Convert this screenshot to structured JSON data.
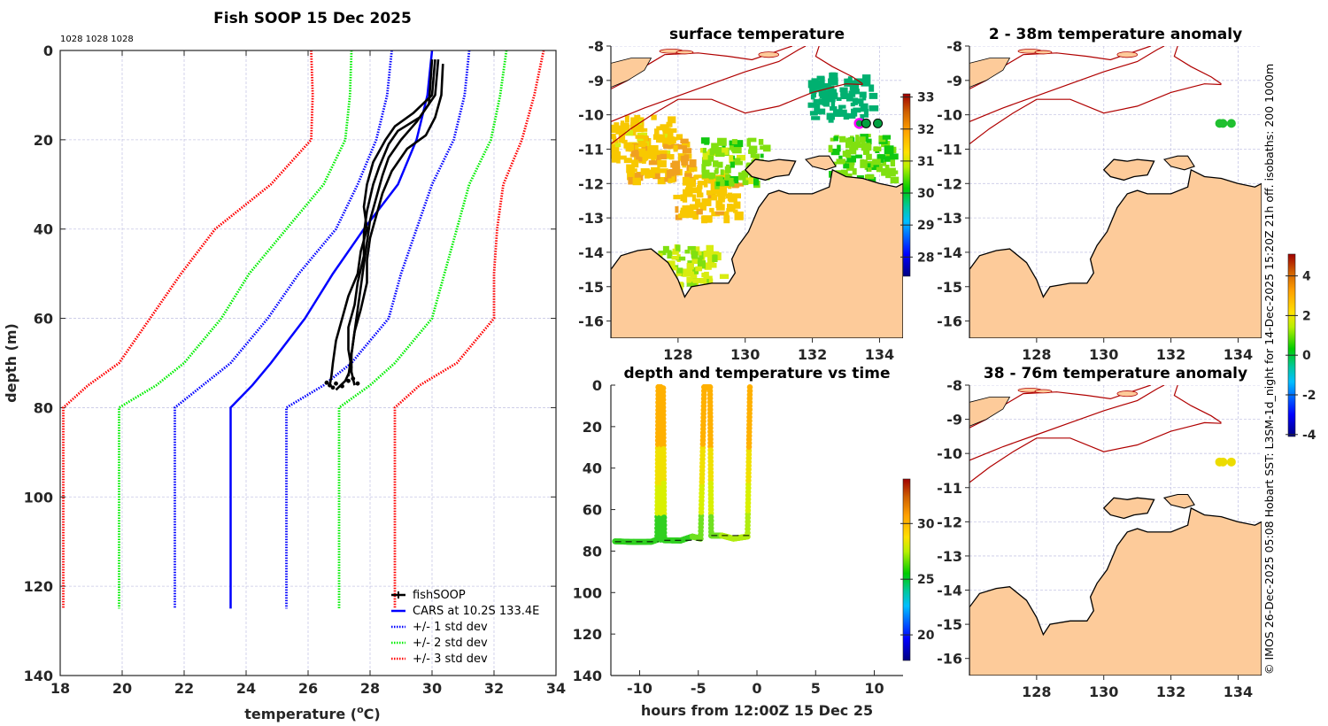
{
  "figure": {
    "credit": "© IMOS 26-Dec-2025 05:08 Hobart SST: L3SM-1d_night for 14-Dec-2025 15:20Z 21h off. isobaths: 200  1000m"
  },
  "colors": {
    "profile": "#000000",
    "cars": "#0000ff",
    "std1": "#0000ff",
    "std2": "#00ee00",
    "std3": "#ff0000",
    "land": "#fdcb9a",
    "isobath": "#b00000",
    "grid": "#c8c8e6"
  },
  "chart_data": [
    {
      "id": "profile",
      "type": "line",
      "title": "Fish SOOP 15 Dec 2025",
      "annotation": "1028 1028 1028",
      "xlabel": "temperature (°C)",
      "xlabel_main": "temperature (",
      "xlabel_sup": "o",
      "xlabel_end": "C)",
      "ylabel": "depth (m)",
      "xlim": [
        18,
        34
      ],
      "ylim": [
        0,
        140
      ],
      "y_reversed": true,
      "xticks": [
        18,
        20,
        22,
        24,
        26,
        28,
        30,
        32,
        34
      ],
      "yticks": [
        0,
        20,
        40,
        60,
        80,
        100,
        120,
        140
      ],
      "grid": true,
      "legend_position": "bottom-right",
      "legend": [
        {
          "label": "fishSOOP",
          "style": "solid-marker",
          "color": "#000000"
        },
        {
          "label": "CARS at 10.2S 133.4E",
          "style": "solid",
          "color": "#0000ff"
        },
        {
          "label": "+/- 1 std dev",
          "style": "dotted",
          "color": "#0000ff"
        },
        {
          "label": "+/- 2 std dev",
          "style": "dotted",
          "color": "#00ee00"
        },
        {
          "label": "+/- 3 std dev",
          "style": "dotted",
          "color": "#ff0000"
        }
      ],
      "depths": [
        0,
        10,
        20,
        30,
        40,
        50,
        60,
        70,
        75,
        80,
        125
      ],
      "series": [
        {
          "name": "CARS at 10.2S 133.4E",
          "style": "solid",
          "color": "#0000ff",
          "temps": [
            30.0,
            29.85,
            29.5,
            28.9,
            27.8,
            26.8,
            25.9,
            24.8,
            24.2,
            23.5,
            23.5
          ]
        },
        {
          "name": "+1 std dev",
          "style": "dotted",
          "color": "#0000ff",
          "temps": [
            31.2,
            31.05,
            30.7,
            30.0,
            29.5,
            29.0,
            28.6,
            27.4,
            26.5,
            25.3,
            25.3
          ]
        },
        {
          "name": "-1 std dev",
          "style": "dotted",
          "color": "#0000ff",
          "temps": [
            28.7,
            28.55,
            28.2,
            27.6,
            26.9,
            25.7,
            24.7,
            23.5,
            22.6,
            21.7,
            21.7
          ]
        },
        {
          "name": "+2 std dev",
          "style": "dotted",
          "color": "#00ee00",
          "temps": [
            32.4,
            32.2,
            31.9,
            31.2,
            30.8,
            30.4,
            30.0,
            28.8,
            28.0,
            27.0,
            27.0
          ]
        },
        {
          "name": "-2 std dev",
          "style": "dotted",
          "color": "#00ee00",
          "temps": [
            27.4,
            27.35,
            27.2,
            26.5,
            25.3,
            24.1,
            23.2,
            22.0,
            21.1,
            19.9,
            19.9
          ]
        },
        {
          "name": "+3 std dev",
          "style": "dotted",
          "color": "#ff0000",
          "temps": [
            33.6,
            33.3,
            32.9,
            32.3,
            32.1,
            32.0,
            32.0,
            30.8,
            29.6,
            28.8,
            28.8
          ]
        },
        {
          "name": "-3 std dev",
          "style": "dotted",
          "color": "#ff0000",
          "temps": [
            26.1,
            26.15,
            26.1,
            24.8,
            23.0,
            21.9,
            20.9,
            19.9,
            18.9,
            18.1,
            18.1
          ]
        }
      ],
      "fishSOOP_casts": [
        {
          "depths": [
            2,
            10,
            14,
            17,
            20,
            25,
            30,
            35,
            40,
            45,
            50,
            55,
            60,
            65,
            70,
            73,
            75
          ],
          "temps": [
            30.1,
            30.0,
            29.4,
            28.8,
            28.5,
            28.1,
            27.9,
            27.8,
            27.9,
            27.7,
            27.6,
            27.3,
            27.1,
            26.9,
            26.8,
            26.75,
            26.7
          ]
        },
        {
          "depths": [
            2,
            10,
            15,
            18,
            21,
            26,
            30,
            36,
            41,
            46,
            52,
            57,
            62,
            67,
            71,
            74,
            76
          ],
          "temps": [
            30.2,
            30.1,
            29.6,
            28.9,
            28.6,
            28.3,
            28.1,
            27.9,
            27.8,
            27.8,
            27.6,
            27.5,
            27.3,
            27.3,
            27.4,
            27.2,
            26.9
          ]
        },
        {
          "depths": [
            3,
            10,
            15,
            19,
            22,
            27,
            32,
            37,
            42,
            47,
            52,
            58,
            63,
            68,
            72,
            75
          ],
          "temps": [
            30.35,
            30.3,
            30.1,
            29.8,
            29.2,
            28.7,
            28.4,
            28.2,
            28.0,
            27.9,
            27.9,
            27.7,
            27.5,
            27.4,
            27.4,
            27.5
          ]
        },
        {
          "depths": [
            2,
            12,
            16,
            20,
            24,
            28,
            33,
            38,
            43,
            48,
            53,
            58,
            63,
            68,
            73
          ],
          "temps": [
            30.0,
            29.9,
            29.5,
            29.0,
            28.6,
            28.4,
            28.2,
            28.0,
            27.9,
            27.8,
            27.7,
            27.6,
            27.5,
            27.4,
            27.3
          ]
        }
      ]
    },
    {
      "id": "surface_temperature_map",
      "type": "heatmap",
      "title": "surface temperature",
      "xlim": [
        126.0,
        134.7
      ],
      "ylim": [
        -16.5,
        -8
      ],
      "xticks": [
        128,
        130,
        132,
        134
      ],
      "yticks": [
        -8,
        -9,
        -10,
        -11,
        -12,
        -13,
        -14,
        -15,
        -16
      ],
      "colorbar": {
        "ticks": [
          28,
          29,
          30,
          31,
          32,
          33
        ],
        "range": [
          27.4,
          33.1
        ]
      },
      "sst_patches": [
        {
          "lon": 126.8,
          "lat": -10.6,
          "sst": 31.5
        },
        {
          "lon": 127.4,
          "lat": -11.2,
          "sst": 31.8
        },
        {
          "lon": 128.8,
          "lat": -12.3,
          "sst": 31.6
        },
        {
          "lon": 129.6,
          "lat": -11.3,
          "sst": 30.6
        },
        {
          "lon": 133.4,
          "lat": -11.2,
          "sst": 30.4
        },
        {
          "lon": 132.8,
          "lat": -9.4,
          "sst": 29.6
        },
        {
          "lon": 128.3,
          "lat": -14.4,
          "sst": 30.9
        }
      ],
      "track_points": [
        {
          "lon": 133.4,
          "lat": -10.25,
          "marker": "magenta-ring"
        },
        {
          "lon": 133.6,
          "lat": -10.25,
          "marker": "black-ring"
        },
        {
          "lon": 133.95,
          "lat": -10.25,
          "marker": "black-ring"
        }
      ]
    },
    {
      "id": "depth_time",
      "type": "scatter",
      "title": "depth and temperature vs time",
      "xlabel": "hours from 12:00Z 15 Dec 25",
      "xlim": [
        -12.45,
        12.45
      ],
      "ylim": [
        0,
        140
      ],
      "y_reversed": true,
      "xticks": [
        -10,
        -5,
        0,
        5,
        10
      ],
      "yticks": [
        0,
        20,
        40,
        60,
        80,
        100,
        120,
        140
      ],
      "colorbar": {
        "ticks": [
          20,
          25,
          30
        ],
        "range": [
          17.7,
          34
        ]
      },
      "track": [
        {
          "t": -12.1,
          "depth": 75.3,
          "temp": 26.6
        },
        {
          "t": -10.5,
          "depth": 75.6,
          "temp": 26.6
        },
        {
          "t": -9.0,
          "depth": 75.5,
          "temp": 26.7
        },
        {
          "t": -8.5,
          "depth": 74.5,
          "temp": 26.9
        },
        {
          "t": -8.4,
          "depth": 1,
          "temp": 30.1
        },
        {
          "t": -8.2,
          "depth": 1,
          "temp": 30.1
        },
        {
          "t": -8.2,
          "depth": 74.5,
          "temp": 26.9
        },
        {
          "t": -8.0,
          "depth": 1.5,
          "temp": 30.1
        },
        {
          "t": -7.9,
          "depth": 74.8,
          "temp": 26.9
        },
        {
          "t": -6.5,
          "depth": 74.9,
          "temp": 27.0
        },
        {
          "t": -5.5,
          "depth": 73.0,
          "temp": 27.3
        },
        {
          "t": -4.8,
          "depth": 74.0,
          "temp": 27.3
        },
        {
          "t": -4.5,
          "depth": 1,
          "temp": 30.2
        },
        {
          "t": -4.0,
          "depth": 1,
          "temp": 30.1
        },
        {
          "t": -3.9,
          "depth": 72.5,
          "temp": 27.5
        },
        {
          "t": -3.0,
          "depth": 72.5,
          "temp": 27.9
        },
        {
          "t": -2.0,
          "depth": 74.0,
          "temp": 28.0
        },
        {
          "t": -0.8,
          "depth": 73.0,
          "temp": 28.1
        },
        {
          "t": -0.6,
          "depth": 1,
          "temp": 30.1
        }
      ],
      "bottom_dashes": [
        {
          "t0": -12.1,
          "t1": -8.4,
          "depth": 75.5
        },
        {
          "t0": -7.9,
          "t1": -4.5,
          "depth": 74.8
        },
        {
          "t0": -3.9,
          "t1": -0.6,
          "depth": 72.5
        }
      ]
    },
    {
      "id": "anomaly_2_38",
      "type": "heatmap",
      "title": "2 - 38m temperature anomaly",
      "xlim": [
        126.0,
        134.7
      ],
      "ylim": [
        -16.5,
        -8
      ],
      "xticks": [
        128,
        130,
        132,
        134
      ],
      "yticks": [
        -8,
        -9,
        -10,
        -11,
        -12,
        -13,
        -14,
        -15,
        -16
      ],
      "points": [
        {
          "lon": 133.45,
          "lat": -10.25,
          "anomaly": 0.3
        },
        {
          "lon": 133.55,
          "lat": -10.25,
          "anomaly": 0.3
        },
        {
          "lon": 133.8,
          "lat": -10.25,
          "anomaly": 0.3
        }
      ]
    },
    {
      "id": "anomaly_38_76",
      "type": "heatmap",
      "title": "38 - 76m temperature anomaly",
      "xlim": [
        126.0,
        134.7
      ],
      "ylim": [
        -16.5,
        -8
      ],
      "xticks": [
        128,
        130,
        132,
        134
      ],
      "yticks": [
        -8,
        -9,
        -10,
        -11,
        -12,
        -13,
        -14,
        -15,
        -16
      ],
      "colorbar": {
        "ticks": [
          -4,
          -2,
          0,
          2,
          4
        ],
        "range": [
          -4.1,
          5.1
        ]
      },
      "points": [
        {
          "lon": 133.45,
          "lat": -10.25,
          "anomaly": 2.3
        },
        {
          "lon": 133.55,
          "lat": -10.25,
          "anomaly": 2.3
        },
        {
          "lon": 133.8,
          "lat": -10.25,
          "anomaly": 2.3
        }
      ]
    }
  ]
}
